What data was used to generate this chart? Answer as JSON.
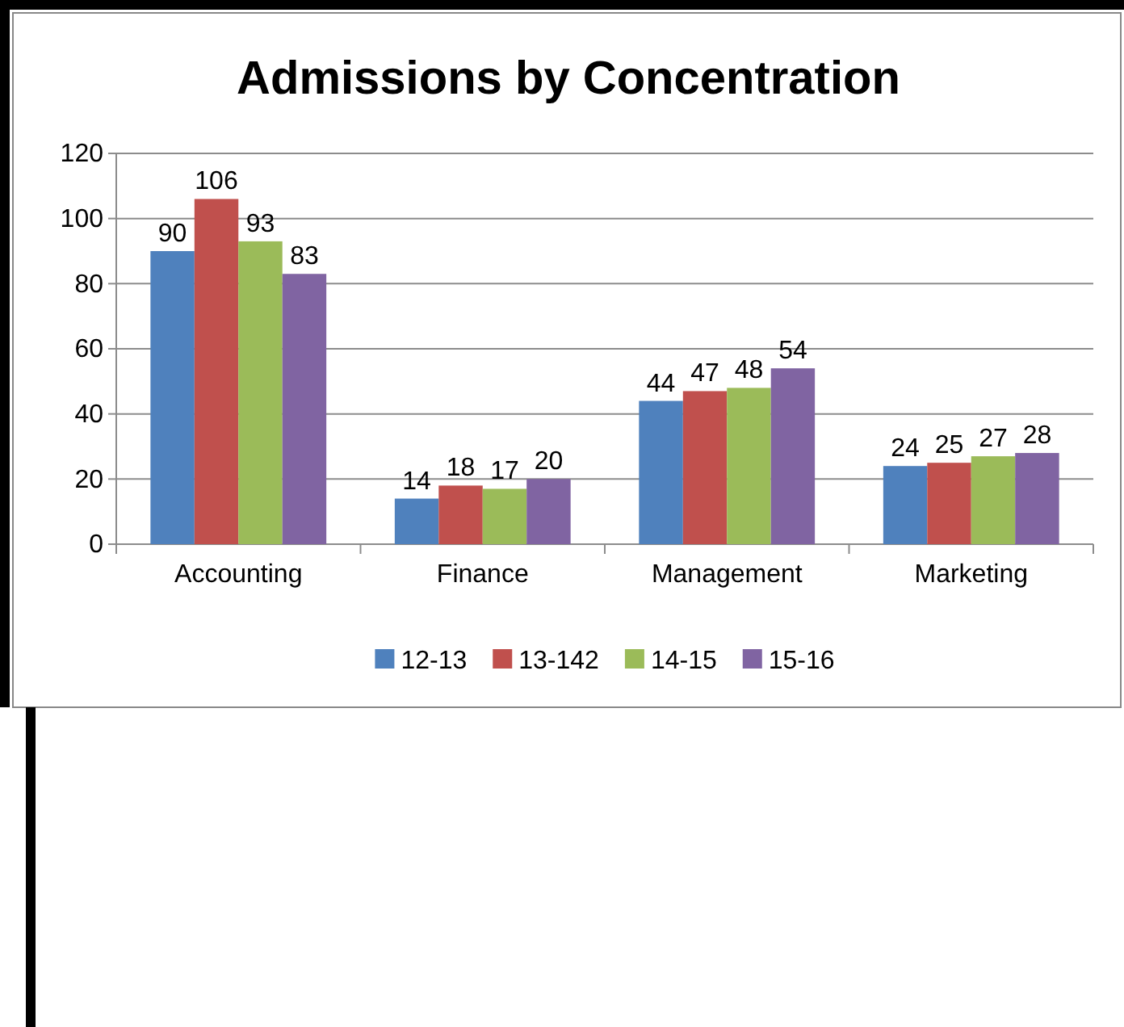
{
  "chart_data": {
    "type": "bar",
    "title": "Admissions by Concentration",
    "categories": [
      "Accounting",
      "Finance",
      "Management",
      "Marketing"
    ],
    "series": [
      {
        "name": "12-13",
        "color": "#4f81bd",
        "values": [
          90,
          14,
          44,
          24
        ]
      },
      {
        "name": "13-142",
        "color": "#c0504d",
        "values": [
          106,
          18,
          47,
          25
        ]
      },
      {
        "name": "14-15",
        "color": "#9bbb59",
        "values": [
          93,
          17,
          48,
          27
        ]
      },
      {
        "name": "15-16",
        "color": "#8064a2",
        "values": [
          83,
          20,
          54,
          28
        ]
      }
    ],
    "ylim": [
      0,
      120
    ],
    "yticks": [
      0,
      20,
      40,
      60,
      80,
      100,
      120
    ],
    "grid": "y",
    "legend": "bottom",
    "data_labels": true
  }
}
